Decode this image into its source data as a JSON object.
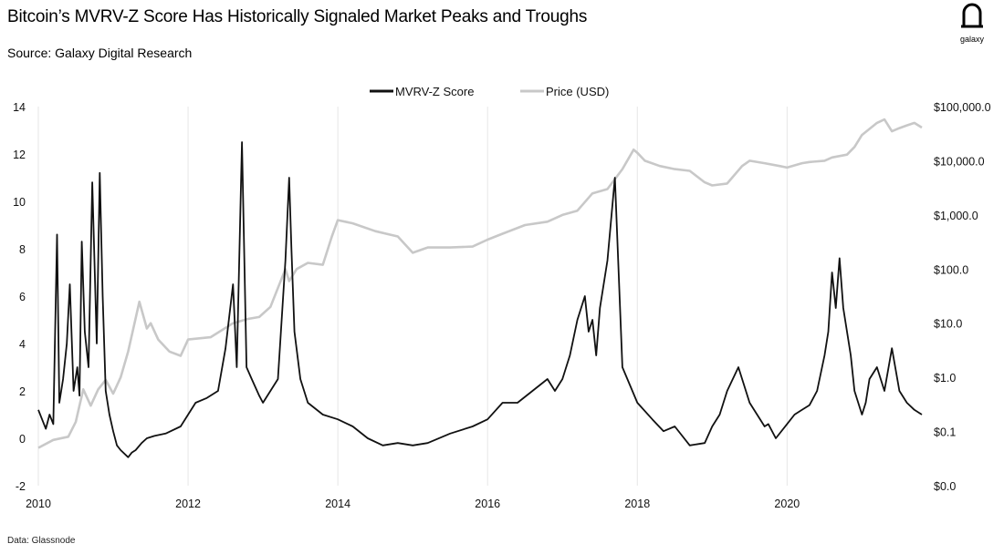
{
  "title": "Bitcoin’s MVRV-Z Score Has Historically Signaled Market Peaks and Troughs",
  "source": "Source: Galaxy Digital Research",
  "footnote": "Data: Glassnode",
  "logo_text": "galaxy",
  "chart_data": {
    "type": "line",
    "xlim": [
      2010.0,
      2021.8
    ],
    "x_ticks": [
      2010,
      2012,
      2014,
      2016,
      2018,
      2020
    ],
    "x_tick_labels": [
      "2010",
      "2012",
      "2014",
      "2016",
      "2018",
      "2020"
    ],
    "y_left": {
      "lim": [
        -2,
        14
      ],
      "ticks": [
        -2,
        0,
        2,
        4,
        6,
        8,
        10,
        12,
        14
      ],
      "tick_labels": [
        "-2",
        "0",
        "2",
        "4",
        "6",
        "8",
        "10",
        "12",
        "14"
      ]
    },
    "y_right": {
      "scale": "log",
      "lim": [
        0.01,
        100000
      ],
      "ticks": [
        0.01,
        0.1,
        1,
        10,
        100,
        1000,
        10000,
        100000
      ],
      "tick_labels": [
        "$0.0",
        "$0.1",
        "$1.0",
        "$10.0",
        "$100.0",
        "$1,000.0",
        "$10,000.0",
        "$100,000.0"
      ]
    },
    "grid": {
      "vertical": true,
      "horizontal": false
    },
    "legend_position": "top-center",
    "series": [
      {
        "name": "MVRV-Z Score",
        "axis": "left",
        "color": "#111111",
        "x": [
          2010.0,
          2010.05,
          2010.1,
          2010.15,
          2010.2,
          2010.25,
          2010.28,
          2010.33,
          2010.38,
          2010.42,
          2010.47,
          2010.52,
          2010.55,
          2010.58,
          2010.62,
          2010.67,
          2010.72,
          2010.78,
          2010.82,
          2010.86,
          2010.9,
          2010.95,
          2011.0,
          2011.05,
          2011.1,
          2011.2,
          2011.25,
          2011.3,
          2011.38,
          2011.45,
          2011.55,
          2011.7,
          2011.9,
          2012.0,
          2012.1,
          2012.25,
          2012.4,
          2012.5,
          2012.6,
          2012.65,
          2012.72,
          2012.78,
          2012.85,
          2012.95,
          2013.0,
          2013.1,
          2013.2,
          2013.3,
          2013.35,
          2013.38,
          2013.42,
          2013.5,
          2013.6,
          2013.8,
          2014.0,
          2014.2,
          2014.4,
          2014.6,
          2014.8,
          2015.0,
          2015.2,
          2015.5,
          2015.8,
          2016.0,
          2016.2,
          2016.4,
          2016.6,
          2016.8,
          2016.9,
          2017.0,
          2017.1,
          2017.2,
          2017.3,
          2017.35,
          2017.4,
          2017.45,
          2017.5,
          2017.6,
          2017.7,
          2017.8,
          2018.0,
          2018.2,
          2018.35,
          2018.5,
          2018.7,
          2018.9,
          2019.0,
          2019.1,
          2019.2,
          2019.35,
          2019.5,
          2019.6,
          2019.7,
          2019.75,
          2019.85,
          2020.0,
          2020.1,
          2020.2,
          2020.3,
          2020.4,
          2020.5,
          2020.55,
          2020.6,
          2020.65,
          2020.7,
          2020.75,
          2020.85,
          2020.9,
          2021.0,
          2021.05,
          2021.1,
          2021.2,
          2021.3,
          2021.4,
          2021.5,
          2021.6,
          2021.7,
          2021.8
        ],
        "y": [
          1.2,
          0.8,
          0.4,
          1.0,
          0.6,
          8.6,
          1.5,
          2.5,
          4.0,
          6.5,
          2.0,
          3.0,
          1.8,
          8.3,
          4.5,
          3.0,
          10.8,
          4.0,
          11.2,
          6.0,
          2.0,
          1.0,
          0.3,
          -0.3,
          -0.5,
          -0.8,
          -0.6,
          -0.5,
          -0.2,
          0.0,
          0.1,
          0.2,
          0.5,
          1.0,
          1.5,
          1.7,
          2.0,
          3.8,
          6.5,
          3.0,
          12.5,
          3.0,
          2.5,
          1.8,
          1.5,
          2.0,
          2.5,
          7.5,
          11.0,
          8.0,
          4.5,
          2.5,
          1.5,
          1.0,
          0.8,
          0.5,
          0.0,
          -0.3,
          -0.2,
          -0.3,
          -0.2,
          0.2,
          0.5,
          0.8,
          1.5,
          1.5,
          2.0,
          2.5,
          2.0,
          2.5,
          3.5,
          5.0,
          6.0,
          4.5,
          5.0,
          3.5,
          5.5,
          7.5,
          11.0,
          3.0,
          1.5,
          0.8,
          0.3,
          0.5,
          -0.3,
          -0.2,
          0.5,
          1.0,
          2.0,
          3.0,
          1.5,
          1.0,
          0.5,
          0.6,
          0.0,
          0.6,
          1.0,
          1.2,
          1.4,
          2.0,
          3.5,
          4.5,
          7.0,
          5.5,
          7.6,
          5.5,
          3.5,
          2.0,
          1.0,
          1.5,
          2.5,
          3.0,
          2.0,
          3.8,
          2.0,
          1.5,
          1.2,
          1.0
        ]
      },
      {
        "name": "Price (USD)",
        "axis": "right",
        "color": "#c8c8c8",
        "x": [
          2010.0,
          2010.2,
          2010.4,
          2010.5,
          2010.55,
          2010.6,
          2010.7,
          2010.8,
          2010.9,
          2011.0,
          2011.1,
          2011.2,
          2011.35,
          2011.45,
          2011.5,
          2011.6,
          2011.75,
          2011.9,
          2012.0,
          2012.3,
          2012.6,
          2012.8,
          2012.95,
          2013.1,
          2013.3,
          2013.35,
          2013.45,
          2013.6,
          2013.8,
          2013.92,
          2014.0,
          2014.2,
          2014.5,
          2014.8,
          2015.0,
          2015.2,
          2015.5,
          2015.8,
          2016.0,
          2016.2,
          2016.5,
          2016.8,
          2017.0,
          2017.2,
          2017.4,
          2017.6,
          2017.8,
          2017.95,
          2018.0,
          2018.1,
          2018.3,
          2018.5,
          2018.7,
          2018.9,
          2019.0,
          2019.2,
          2019.4,
          2019.5,
          2019.7,
          2019.9,
          2020.0,
          2020.2,
          2020.3,
          2020.5,
          2020.6,
          2020.8,
          2020.9,
          2021.0,
          2021.2,
          2021.3,
          2021.4,
          2021.5,
          2021.6,
          2021.7,
          2021.8
        ],
        "y": [
          0.05,
          0.07,
          0.08,
          0.15,
          0.3,
          0.6,
          0.3,
          0.6,
          0.9,
          0.5,
          1.0,
          3.0,
          25,
          8.0,
          10,
          5.0,
          3.0,
          2.5,
          5.0,
          5.5,
          10,
          12,
          13,
          20,
          100,
          60,
          100,
          130,
          120,
          400,
          800,
          700,
          500,
          400,
          200,
          250,
          250,
          260,
          350,
          450,
          650,
          750,
          1000,
          1200,
          2500,
          3000,
          7000,
          16000,
          14000,
          10000,
          8000,
          7000,
          6500,
          4000,
          3500,
          3800,
          8000,
          10000,
          9000,
          8000,
          7500,
          9000,
          9500,
          10000,
          11500,
          13000,
          18000,
          30000,
          50000,
          58000,
          35000,
          40000,
          45000,
          50000,
          41000
        ]
      }
    ]
  }
}
